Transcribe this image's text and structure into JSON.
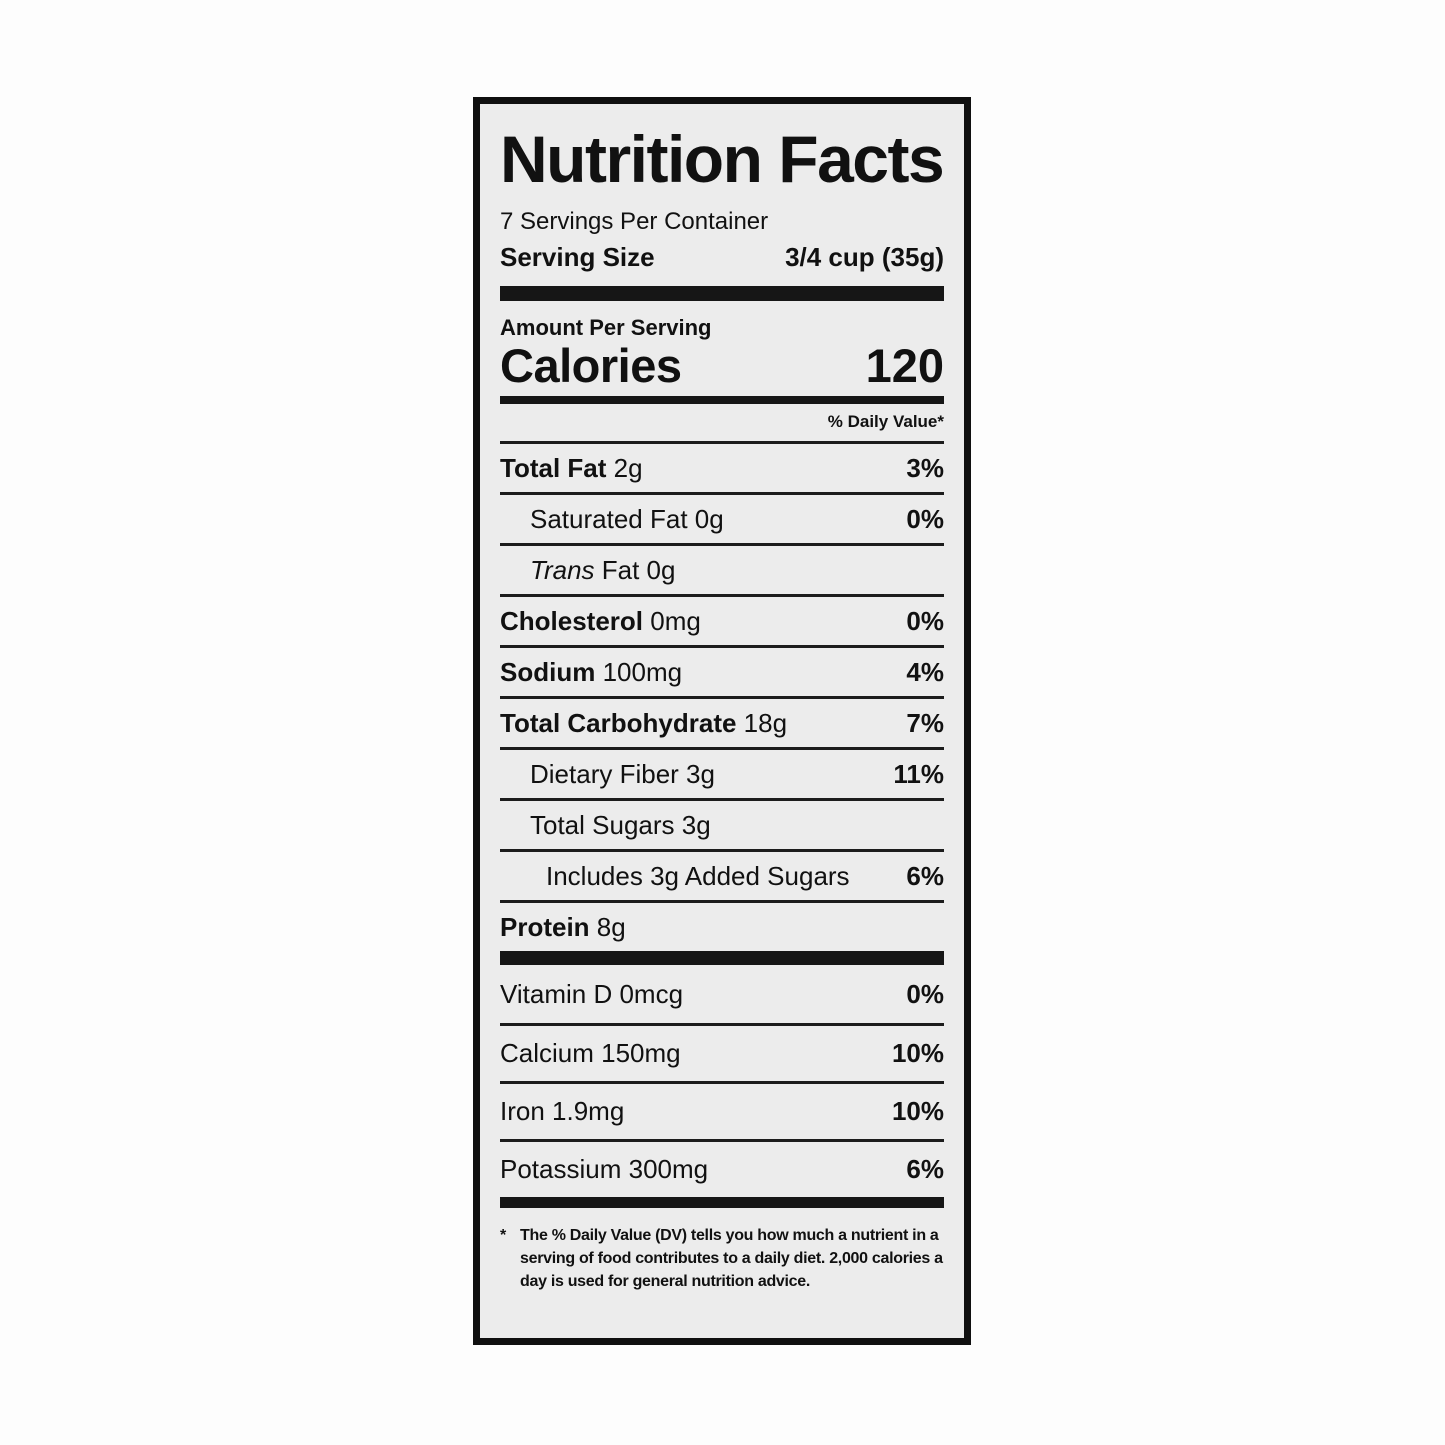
{
  "label": {
    "title": "Nutrition Facts",
    "servings_per_container": "7 Servings Per Container",
    "serving_size_label": "Serving Size",
    "serving_size_value": "3/4 cup (35g)",
    "amount_per_serving": "Amount Per Serving",
    "calories_label": "Calories",
    "calories_value": "120",
    "daily_value_header": "% Daily Value*",
    "main_rows": [
      {
        "bold": "Total Fat",
        "text": " 2g",
        "dv": "3%",
        "indent": 0
      },
      {
        "text": "Saturated Fat 0g",
        "dv": "0%",
        "indent": 1
      },
      {
        "italic": "Trans",
        "text": " Fat 0g",
        "dv": "",
        "indent": 1
      },
      {
        "bold": "Cholesterol",
        "text": " 0mg",
        "dv": "0%",
        "indent": 0
      },
      {
        "bold": "Sodium",
        "text": " 100mg",
        "dv": "4%",
        "indent": 0
      },
      {
        "bold": "Total Carbohydrate",
        "text": " 18g",
        "dv": "7%",
        "indent": 0
      },
      {
        "text": "Dietary Fiber 3g",
        "dv": "11%",
        "indent": 1
      },
      {
        "text": "Total Sugars 3g",
        "dv": "",
        "indent": 1
      },
      {
        "text": "Includes 3g Added Sugars",
        "dv": "6%",
        "indent": 2
      },
      {
        "bold": "Protein",
        "text": " 8g",
        "dv": "",
        "indent": 0
      }
    ],
    "vitamin_rows": [
      {
        "text": "Vitamin D 0mcg",
        "dv": "0%"
      },
      {
        "text": "Calcium 150mg",
        "dv": "10%"
      },
      {
        "text": "Iron 1.9mg",
        "dv": "10%"
      },
      {
        "text": "Potassium 300mg",
        "dv": "6%"
      }
    ],
    "footnote_marker": "*",
    "footnote": "The % Daily Value (DV) tells you how much a nutrient in a serving of food contributes to a daily diet. 2,000 calories a day is used for general nutrition advice."
  },
  "colors": {
    "panel_background": "#ececec",
    "border_and_text": "#111111"
  }
}
